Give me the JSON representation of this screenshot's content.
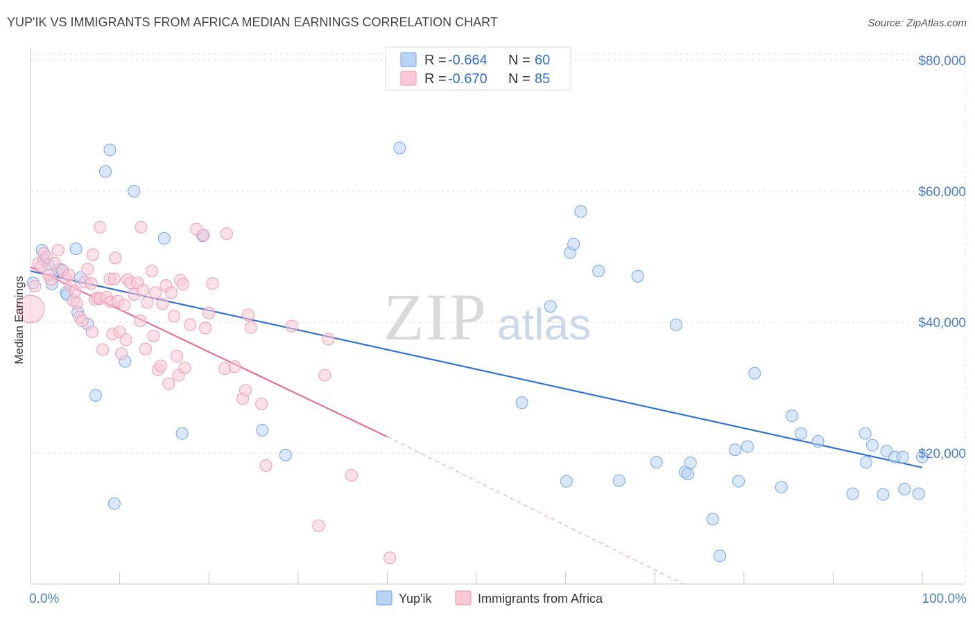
{
  "chart_data": {
    "type": "scatter",
    "title": "YUP'IK VS IMMIGRANTS FROM AFRICA MEDIAN EARNINGS CORRELATION CHART",
    "source": "Source: ZipAtlas.com",
    "xlabel": "",
    "ylabel": "Median Earnings",
    "xlim": [
      0,
      100
    ],
    "ylim": [
      0,
      82000
    ],
    "x_tick_labels": [
      "0.0%",
      "100.0%"
    ],
    "y_ticks": [
      20000,
      40000,
      60000,
      80000
    ],
    "y_tick_labels": [
      "$20,000",
      "$40,000",
      "$60,000",
      "$80,000"
    ],
    "grid": true,
    "watermark": {
      "zip": "ZIP",
      "atlas": "atlas"
    },
    "legend_stats": [
      {
        "r_label": "R =",
        "r_value": "-0.664",
        "n_label": "N =",
        "n_value": "60"
      },
      {
        "r_label": "R =",
        "r_value": "-0.670",
        "n_label": "N =",
        "n_value": "85"
      }
    ],
    "series": [
      {
        "name": "Yup'ik",
        "color": "#7aaee8",
        "fill": "#b9d3f4",
        "line_color": "#2f72d0",
        "trend": {
          "x": [
            0,
            100
          ],
          "y": [
            47800,
            17800
          ]
        },
        "points": [
          [
            0.3,
            46000
          ],
          [
            1.3,
            51000
          ],
          [
            1.5,
            49500
          ],
          [
            2.0,
            48800
          ],
          [
            2.4,
            45800
          ],
          [
            3.2,
            48000
          ],
          [
            3.5,
            48000
          ],
          [
            4.0,
            44500
          ],
          [
            4.1,
            44200
          ],
          [
            5.1,
            51200
          ],
          [
            5.3,
            41500
          ],
          [
            5.6,
            46800
          ],
          [
            6.4,
            39700
          ],
          [
            7.3,
            28800
          ],
          [
            8.4,
            63000
          ],
          [
            8.9,
            66300
          ],
          [
            9.4,
            12300
          ],
          [
            10.6,
            34000
          ],
          [
            11.6,
            60000
          ],
          [
            15.0,
            52800
          ],
          [
            17.0,
            23000
          ],
          [
            19.3,
            53200
          ],
          [
            26.0,
            23500
          ],
          [
            28.6,
            19700
          ],
          [
            41.4,
            66600
          ],
          [
            55.1,
            27700
          ],
          [
            58.3,
            42400
          ],
          [
            60.1,
            15700
          ],
          [
            60.5,
            50600
          ],
          [
            60.9,
            51900
          ],
          [
            61.7,
            56900
          ],
          [
            63.7,
            47800
          ],
          [
            66.0,
            15800
          ],
          [
            68.1,
            47000
          ],
          [
            70.2,
            18600
          ],
          [
            72.4,
            39600
          ],
          [
            73.4,
            17100
          ],
          [
            73.7,
            16800
          ],
          [
            74.0,
            18500
          ],
          [
            76.5,
            9900
          ],
          [
            77.3,
            4300
          ],
          [
            79.0,
            20500
          ],
          [
            79.4,
            15700
          ],
          [
            80.4,
            21000
          ],
          [
            81.2,
            32200
          ],
          [
            84.2,
            14800
          ],
          [
            85.4,
            25700
          ],
          [
            86.4,
            23000
          ],
          [
            88.3,
            21800
          ],
          [
            92.2,
            13800
          ],
          [
            93.6,
            23000
          ],
          [
            93.7,
            18600
          ],
          [
            94.4,
            21200
          ],
          [
            95.6,
            13700
          ],
          [
            96.0,
            20300
          ],
          [
            96.9,
            19400
          ],
          [
            97.8,
            19400
          ],
          [
            98.0,
            14500
          ],
          [
            99.6,
            13800
          ],
          [
            100.0,
            19400
          ]
        ]
      },
      {
        "name": "Immigrants from Africa",
        "color": "#f0a0b8",
        "fill": "#f9c9d7",
        "line_color": "#e86c98",
        "trend": {
          "x": [
            0,
            40
          ],
          "y": [
            48400,
            22500
          ]
        },
        "trend_extension": {
          "x": [
            40,
            73.2
          ],
          "y": [
            22500,
            0
          ]
        },
        "points": [
          [
            0.0,
            42000
          ],
          [
            0.5,
            45500
          ],
          [
            0.9,
            49000
          ],
          [
            1.2,
            48500
          ],
          [
            1.5,
            50500
          ],
          [
            1.8,
            49900
          ],
          [
            2.0,
            47200
          ],
          [
            2.3,
            46500
          ],
          [
            2.7,
            49000
          ],
          [
            3.1,
            51000
          ],
          [
            3.6,
            47900
          ],
          [
            3.9,
            46700
          ],
          [
            4.3,
            47200
          ],
          [
            4.5,
            45500
          ],
          [
            4.8,
            43300
          ],
          [
            5.2,
            42900
          ],
          [
            5.5,
            40800
          ],
          [
            5.8,
            40200
          ],
          [
            6.1,
            46100
          ],
          [
            6.4,
            48100
          ],
          [
            6.8,
            45900
          ],
          [
            6.9,
            38500
          ],
          [
            7.0,
            50300
          ],
          [
            7.2,
            43500
          ],
          [
            7.5,
            43700
          ],
          [
            7.8,
            43600
          ],
          [
            8.1,
            35800
          ],
          [
            8.5,
            43800
          ],
          [
            8.9,
            46600
          ],
          [
            9.0,
            43100
          ],
          [
            9.2,
            38200
          ],
          [
            9.4,
            46600
          ],
          [
            9.5,
            49800
          ],
          [
            9.8,
            43200
          ],
          [
            10.0,
            38500
          ],
          [
            10.2,
            35200
          ],
          [
            10.5,
            42600
          ],
          [
            10.7,
            37300
          ],
          [
            10.9,
            46500
          ],
          [
            11.2,
            46000
          ],
          [
            11.6,
            44200
          ],
          [
            12.0,
            46000
          ],
          [
            12.3,
            40200
          ],
          [
            12.4,
            54500
          ],
          [
            12.6,
            44900
          ],
          [
            12.9,
            35900
          ],
          [
            13.1,
            43000
          ],
          [
            13.6,
            47800
          ],
          [
            13.8,
            37900
          ],
          [
            14.0,
            44500
          ],
          [
            14.3,
            32700
          ],
          [
            14.6,
            33300
          ],
          [
            14.8,
            42800
          ],
          [
            15.2,
            45600
          ],
          [
            15.5,
            30600
          ],
          [
            15.8,
            44500
          ],
          [
            16.1,
            40900
          ],
          [
            16.4,
            34800
          ],
          [
            16.6,
            31900
          ],
          [
            16.8,
            46400
          ],
          [
            17.1,
            45800
          ],
          [
            17.3,
            33000
          ],
          [
            17.9,
            39600
          ],
          [
            18.6,
            54200
          ],
          [
            19.4,
            53300
          ],
          [
            19.6,
            39100
          ],
          [
            20.0,
            41400
          ],
          [
            20.4,
            45900
          ],
          [
            21.8,
            32900
          ],
          [
            22.0,
            53500
          ],
          [
            22.9,
            33200
          ],
          [
            23.8,
            28300
          ],
          [
            24.1,
            29600
          ],
          [
            24.4,
            41100
          ],
          [
            24.7,
            39200
          ],
          [
            25.9,
            27500
          ],
          [
            26.4,
            18100
          ],
          [
            29.3,
            39400
          ],
          [
            32.3,
            8900
          ],
          [
            33.0,
            31900
          ],
          [
            33.4,
            37400
          ],
          [
            36.0,
            16600
          ],
          [
            40.3,
            4000
          ],
          [
            5.0,
            44700
          ],
          [
            7.8,
            54500
          ]
        ]
      }
    ]
  }
}
